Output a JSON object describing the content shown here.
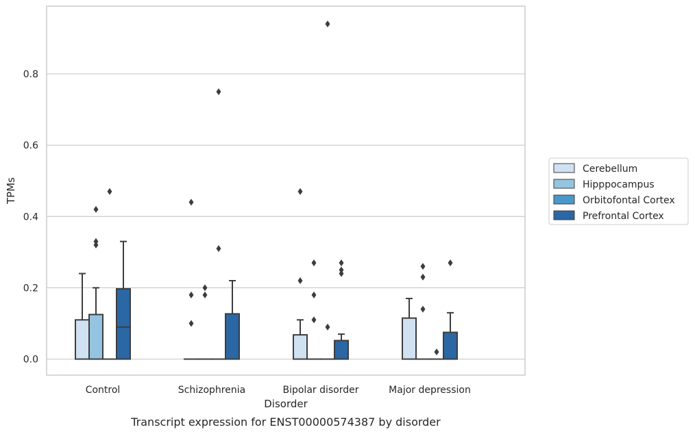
{
  "caption": "Transcript expression for ENST00000574387 by disorder",
  "chart_data": {
    "type": "box",
    "title": "",
    "xlabel": "Disorder",
    "ylabel": "TPMs",
    "ylim": [
      -0.045,
      0.99
    ],
    "yticks": [
      0.0,
      0.2,
      0.4,
      0.6,
      0.8
    ],
    "ytick_labels": [
      "0.0",
      "0.2",
      "0.4",
      "0.6",
      "0.8"
    ],
    "grid": "horizontal",
    "legend_position": "right",
    "categories": [
      "Control",
      "Schizophrenia",
      "Bipolar disorder",
      "Major depression"
    ],
    "series": [
      {
        "name": "Cerebellum",
        "color": "#d0e1f2",
        "boxes": [
          {
            "q1": 0.0,
            "median": 0.0,
            "q3": 0.11,
            "whisker_low": 0.0,
            "whisker_high": 0.24,
            "outliers": []
          },
          {
            "q1": 0.0,
            "median": 0.0,
            "q3": 0.0,
            "whisker_low": 0.0,
            "whisker_high": 0.0,
            "outliers": [
              0.44,
              0.18,
              0.1
            ]
          },
          {
            "q1": 0.0,
            "median": 0.0,
            "q3": 0.068,
            "whisker_low": 0.0,
            "whisker_high": 0.11,
            "outliers": [
              0.47,
              0.22
            ]
          },
          {
            "q1": 0.0,
            "median": 0.0,
            "q3": 0.115,
            "whisker_low": 0.0,
            "whisker_high": 0.17,
            "outliers": []
          }
        ]
      },
      {
        "name": "Hipppocampus",
        "color": "#94c4df",
        "boxes": [
          {
            "q1": 0.0,
            "median": 0.0,
            "q3": 0.125,
            "whisker_low": 0.0,
            "whisker_high": 0.2,
            "outliers": [
              0.42,
              0.33,
              0.32
            ]
          },
          {
            "q1": 0.0,
            "median": 0.0,
            "q3": 0.0,
            "whisker_low": 0.0,
            "whisker_high": 0.0,
            "outliers": [
              0.2,
              0.18
            ]
          },
          {
            "q1": 0.0,
            "median": 0.0,
            "q3": 0.0,
            "whisker_low": 0.0,
            "whisker_high": 0.0,
            "outliers": [
              0.27,
              0.18,
              0.11
            ]
          },
          {
            "q1": 0.0,
            "median": 0.0,
            "q3": 0.0,
            "whisker_low": 0.0,
            "whisker_high": 0.0,
            "outliers": [
              0.26,
              0.23,
              0.14
            ]
          }
        ]
      },
      {
        "name": "Orbitofontal Cortex",
        "color": "#4a98c9",
        "boxes": [
          {
            "q1": 0.0,
            "median": 0.0,
            "q3": 0.0,
            "whisker_low": 0.0,
            "whisker_high": 0.0,
            "outliers": [
              0.47
            ]
          },
          {
            "q1": 0.0,
            "median": 0.0,
            "q3": 0.0,
            "whisker_low": 0.0,
            "whisker_high": 0.0,
            "outliers": [
              0.75,
              0.31
            ]
          },
          {
            "q1": 0.0,
            "median": 0.0,
            "q3": 0.0,
            "whisker_low": 0.0,
            "whisker_high": 0.0,
            "outliers": [
              0.94,
              0.09
            ]
          },
          {
            "q1": 0.0,
            "median": 0.0,
            "q3": 0.0,
            "whisker_low": 0.0,
            "whisker_high": 0.0,
            "outliers": [
              0.02
            ]
          }
        ]
      },
      {
        "name": "Prefrontal Cortex",
        "color": "#2b67a4",
        "boxes": [
          {
            "q1": 0.0,
            "median": 0.09,
            "q3": 0.197,
            "whisker_low": 0.0,
            "whisker_high": 0.33,
            "outliers": []
          },
          {
            "q1": 0.0,
            "median": 0.0,
            "q3": 0.127,
            "whisker_low": 0.0,
            "whisker_high": 0.22,
            "outliers": []
          },
          {
            "q1": 0.0,
            "median": 0.0,
            "q3": 0.052,
            "whisker_low": 0.0,
            "whisker_high": 0.07,
            "outliers": [
              0.27,
              0.25,
              0.24
            ]
          },
          {
            "q1": 0.0,
            "median": 0.0,
            "q3": 0.075,
            "whisker_low": 0.0,
            "whisker_high": 0.13,
            "outliers": [
              0.27
            ]
          }
        ]
      }
    ]
  }
}
